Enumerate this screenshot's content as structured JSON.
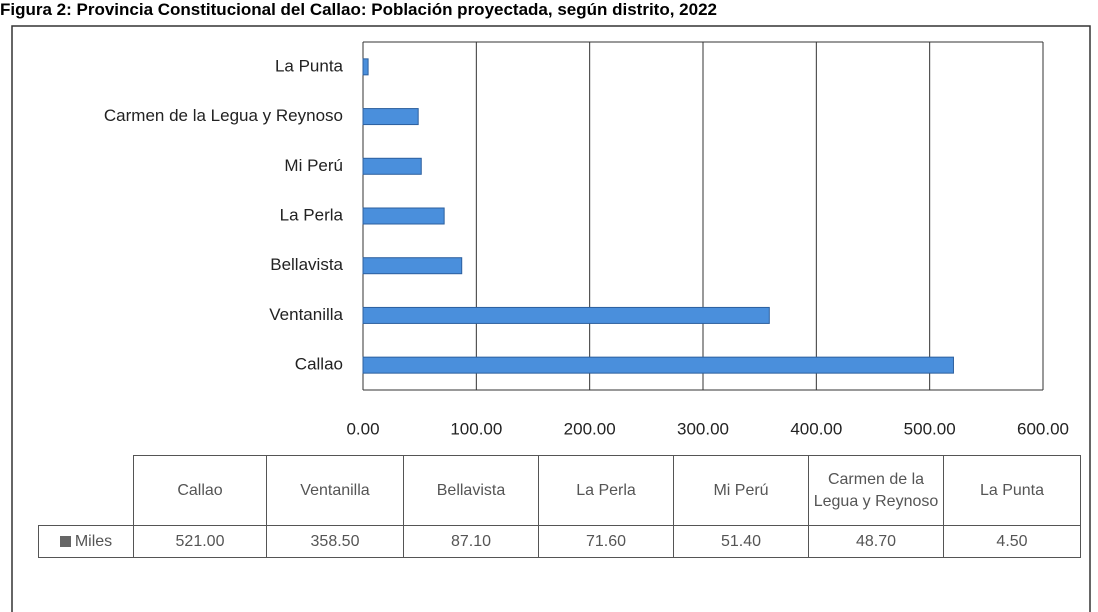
{
  "chart_data": {
    "type": "bar",
    "orientation": "horizontal",
    "title": "Figura 2: Provincia Constitucional del Callao: Población proyectada, según distrito, 2022",
    "categories": [
      "Callao",
      "Ventanilla",
      "Bellavista",
      "La Perla",
      "Mi Perú",
      "Carmen de la Legua y Reynoso",
      "La Punta"
    ],
    "series": [
      {
        "name": "Miles",
        "color": "#4a8fdc",
        "values": [
          521.0,
          358.5,
          87.1,
          71.6,
          51.4,
          48.7,
          4.5
        ],
        "value_labels": [
          "521.00",
          "358.50",
          "87.10",
          "71.60",
          "51.40",
          "48.70",
          "4.50"
        ]
      }
    ],
    "xlim": [
      0,
      600
    ],
    "xticks": [
      {
        "value": 0,
        "label": "0.00"
      },
      {
        "value": 100,
        "label": "100.00"
      },
      {
        "value": 200,
        "label": "200.00"
      },
      {
        "value": 300,
        "label": "300.00"
      },
      {
        "value": 400,
        "label": "400.00"
      },
      {
        "value": 500,
        "label": "500.00"
      },
      {
        "value": 600,
        "label": "600.00"
      }
    ],
    "grid": true,
    "data_table": true
  }
}
